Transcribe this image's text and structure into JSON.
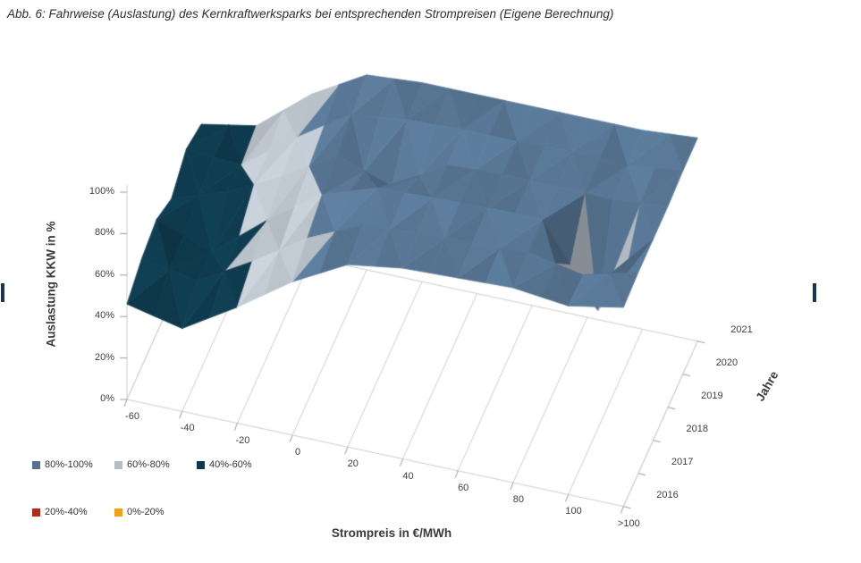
{
  "document": {
    "caption": "Abb. 6: Fahrweise (Auslastung) des Kernkraftwerksparks bei entsprechenden Strompreisen (Eigene Berechnung)"
  },
  "chart_data": {
    "type": "surface",
    "title": "Fahrweise (Auslastung) des Kernkraftwerksparks bei entsprechenden Strompreisen",
    "x_axis": {
      "label": "Strompreis in €/MWh",
      "categories": [
        "-60",
        "-40",
        "-20",
        "0",
        "20",
        "40",
        "60",
        "80",
        "100",
        ">100"
      ]
    },
    "depth_axis": {
      "label": "Jahre",
      "categories": [
        "2016",
        "2017",
        "2018",
        "2019",
        "2020",
        "2021"
      ]
    },
    "z_axis": {
      "label": "Auslastung KKW in %",
      "tick_labels": [
        "0%",
        "20%",
        "40%",
        "60%",
        "80%",
        "100%"
      ],
      "min": 0,
      "max": 100,
      "tick_step": 20
    },
    "series": [
      {
        "name": "2016",
        "values": [
          46,
          40,
          56,
          74,
          88,
          92,
          93,
          94,
          91,
          96
        ]
      },
      {
        "name": "2017",
        "values": [
          52,
          47,
          62,
          79,
          91,
          93,
          94,
          95,
          90,
          97
        ]
      },
      {
        "name": "2018",
        "values": [
          55,
          45,
          66,
          84,
          93,
          94,
          95,
          95,
          57,
          97
        ]
      },
      {
        "name": "2019",
        "values": [
          49,
          58,
          71,
          87,
          78,
          94,
          95,
          95,
          94,
          97
        ]
      },
      {
        "name": "2020",
        "values": [
          57,
          55,
          74,
          91,
          94,
          95,
          95,
          96,
          95,
          98
        ]
      },
      {
        "name": "2021",
        "values": [
          53,
          58,
          79,
          94,
          96,
          96,
          96,
          96,
          96,
          98
        ]
      }
    ],
    "legend": [
      {
        "label": "80%-100%",
        "color": "#54718e",
        "range": [
          80,
          100
        ]
      },
      {
        "label": "60%-80%",
        "color": "#b4bcc4",
        "range": [
          60,
          80
        ]
      },
      {
        "label": "40%-60%",
        "color": "#0e3a4c",
        "range": [
          40,
          60
        ]
      },
      {
        "label": "20%-40%",
        "color": "#b22a18",
        "range": [
          20,
          40
        ]
      },
      {
        "label": "0%-20%",
        "color": "#eea313",
        "range": [
          0,
          20
        ]
      }
    ],
    "legend_position": "bottom-left",
    "grid": true
  }
}
